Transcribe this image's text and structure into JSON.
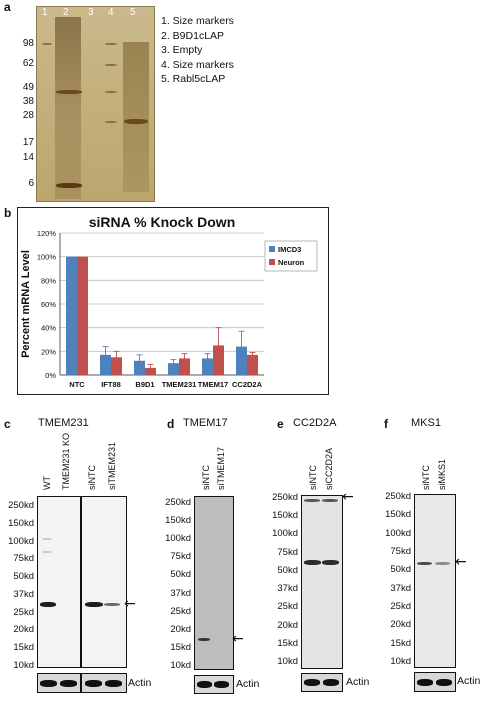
{
  "panel_a": {
    "letter": "a",
    "lane_numbers": [
      "1",
      "2",
      "3",
      "4",
      "5"
    ],
    "mw_markers": [
      "98",
      "62",
      "49",
      "38",
      "28",
      "17",
      "14",
      "6"
    ],
    "legend": [
      "1. Size markers",
      "2. B9D1cLAP",
      "3. Empty",
      "4. Size markers",
      "5. Rabl5cLAP"
    ]
  },
  "panel_b": {
    "letter": "b",
    "chart_data": {
      "type": "bar",
      "title": "siRNA % Knock Down",
      "ylabel": "Percent mRNA Level",
      "xlabel": "",
      "ylim": [
        0,
        120
      ],
      "yticks": [
        "0%",
        "20%",
        "40%",
        "60%",
        "80%",
        "100%",
        "120%"
      ],
      "categories": [
        "NTC",
        "IFT88",
        "B9D1",
        "TMEM231",
        "TMEM17",
        "CC2D2A"
      ],
      "series": [
        {
          "name": "IMCD3",
          "color": "#4f81bd",
          "values": [
            100,
            17,
            12,
            10,
            14,
            24
          ],
          "errors": [
            0,
            7,
            5,
            3,
            4,
            13
          ]
        },
        {
          "name": "Neuron",
          "color": "#c0504d",
          "values": [
            100,
            15,
            6,
            14,
            25,
            17
          ],
          "errors": [
            0,
            5,
            3,
            4,
            15,
            2
          ]
        }
      ],
      "legend_position": "top-right",
      "grid": true
    }
  },
  "panel_c": {
    "letter": "c",
    "title": "TMEM231",
    "lanes_left": [
      "WT",
      "TMEM231 KO"
    ],
    "lanes_right": [
      "siNTC",
      "siTMEM231"
    ],
    "mw_markers": [
      "250kd",
      "150kd",
      "100kd",
      "75kd",
      "50kd",
      "37kd",
      "25kd",
      "20kd",
      "15kd",
      "10kd"
    ],
    "actin_label": "Actin",
    "arrow": "←"
  },
  "panel_d": {
    "letter": "d",
    "title": "TMEM17",
    "lanes": [
      "siNTC",
      "siTMEM17"
    ],
    "mw_markers": [
      "250kd",
      "150kd",
      "100kd",
      "75kd",
      "50kd",
      "37kd",
      "25kd",
      "20kd",
      "15kd",
      "10kd"
    ],
    "actin_label": "Actin",
    "arrow": "←"
  },
  "panel_e": {
    "letter": "e",
    "title": "CC2D2A",
    "lanes": [
      "siNTC",
      "siCC2D2A"
    ],
    "mw_markers": [
      "250kd",
      "150kd",
      "100kd",
      "75kd",
      "50kd",
      "37kd",
      "25kd",
      "20kd",
      "15kd",
      "10kd"
    ],
    "actin_label": "Actin",
    "arrow": "←"
  },
  "panel_f": {
    "letter": "f",
    "title": "MKS1",
    "lanes": [
      "siNTC",
      "siMKS1"
    ],
    "mw_markers": [
      "250kd",
      "150kd",
      "100kd",
      "75kd",
      "50kd",
      "37kd",
      "25kd",
      "20kd",
      "15kd",
      "10kd"
    ],
    "actin_label": "Actin",
    "arrow": "←"
  }
}
